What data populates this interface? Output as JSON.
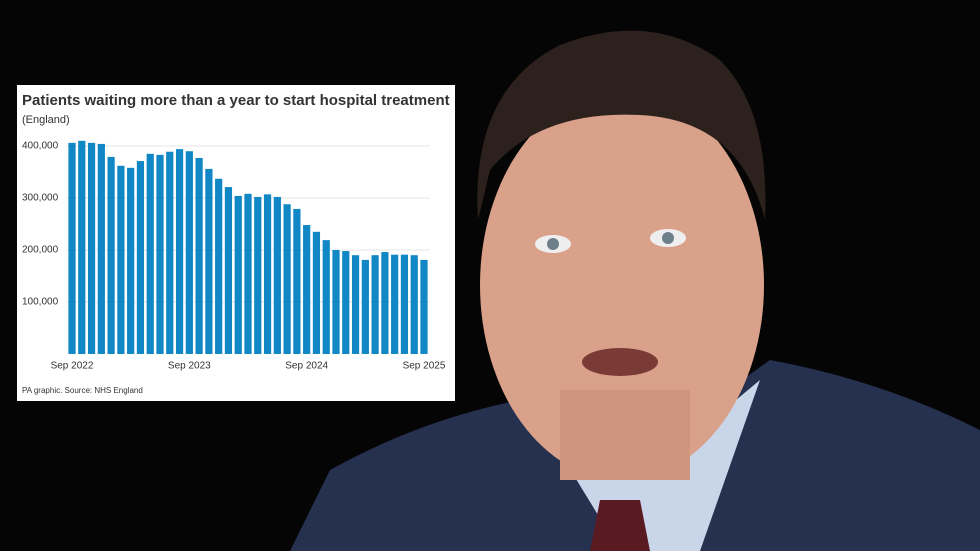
{
  "chart_data": {
    "type": "bar",
    "title": "Patients waiting more than a year to start hospital treatment",
    "subtitle": "(England)",
    "source": "PA graphic. Source: NHS England",
    "categories": [
      "Sep 2022",
      null,
      null,
      null,
      null,
      null,
      null,
      null,
      null,
      null,
      null,
      null,
      "Sep 2023",
      null,
      null,
      null,
      null,
      null,
      null,
      null,
      null,
      null,
      null,
      null,
      "Sep 2024",
      null,
      null,
      null,
      null,
      null,
      null,
      null,
      null,
      null,
      null,
      null,
      "Sep 2025"
    ],
    "values": [
      406000,
      410000,
      406000,
      404000,
      379000,
      362000,
      358000,
      371000,
      385000,
      383000,
      389000,
      394000,
      390000,
      377000,
      356000,
      337000,
      321000,
      304000,
      308000,
      302000,
      307000,
      302000,
      288000,
      279000,
      248000,
      235000,
      219000,
      200000,
      198000,
      190000,
      181000,
      190000,
      196000,
      191000,
      191000,
      190000,
      181000
    ],
    "color": "#1287c5",
    "ylim": [
      0,
      420000
    ],
    "yticks": [
      {
        "value": 100000,
        "label": "100,000"
      },
      {
        "value": 200000,
        "label": "200,000"
      },
      {
        "value": 300000,
        "label": "300,000"
      },
      {
        "value": 400000,
        "label": "400,000"
      }
    ],
    "grid": true
  }
}
